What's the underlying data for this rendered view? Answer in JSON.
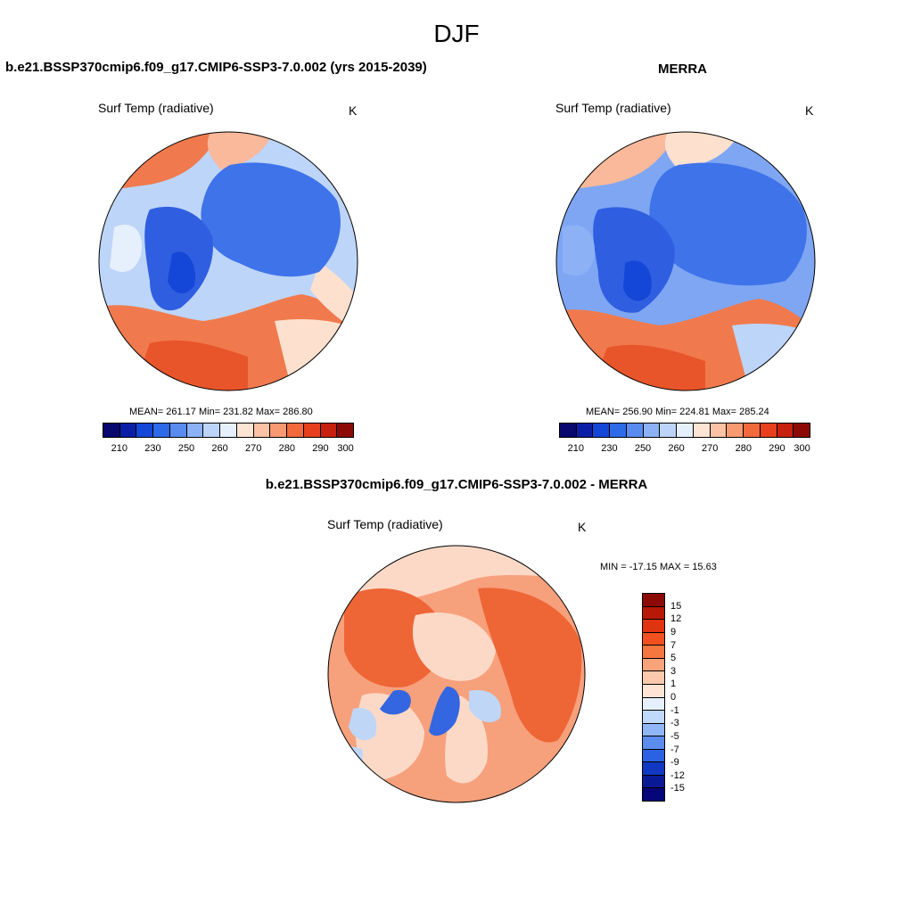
{
  "title": "DJF",
  "panels": {
    "left": {
      "title": "b.e21.BSSP370cmip6.f09_g17.CMIP6-SSP3-7.0.002 (yrs 2015-2039)",
      "variable": "Surf Temp (radiative)",
      "units": "K",
      "stats": "MEAN= 261.17  Min= 231.82  Max= 286.80"
    },
    "right": {
      "title": "MERRA",
      "variable": "Surf Temp (radiative)",
      "units": "K",
      "stats": "MEAN= 256.90  Min= 224.81  Max= 285.24"
    },
    "diff": {
      "title": "b.e21.BSSP370cmip6.f09_g17.CMIP6-SSP3-7.0.002 - MERRA",
      "variable": "Surf Temp (radiative)",
      "units": "K",
      "stats": "MIN = -17.15 MAX =  15.63"
    }
  },
  "colorbar_abs": {
    "ticks": [
      "210",
      "230",
      "250",
      "260",
      "270",
      "280",
      "290",
      "300"
    ],
    "colors": [
      "#08086e",
      "#0b1fa6",
      "#1446d8",
      "#2d6ae8",
      "#5a8cf0",
      "#8cb2f5",
      "#bcd4fa",
      "#e6f0fd",
      "#fde4d4",
      "#fbc2a4",
      "#f79a72",
      "#f26a3c",
      "#e8401c",
      "#c8200e",
      "#8c0a06"
    ]
  },
  "colorbar_diff": {
    "ticks": [
      "15",
      "12",
      "9",
      "7",
      "5",
      "3",
      "1",
      "0",
      "-1",
      "-3",
      "-5",
      "-7",
      "-9",
      "-12",
      "-15"
    ],
    "colors": [
      "#8c0a06",
      "#b81808",
      "#e0330f",
      "#f2501f",
      "#f5763f",
      "#f9a37b",
      "#fdc9ad",
      "#fde4d4",
      "#e6f0fd",
      "#c0d8fa",
      "#90b6f5",
      "#5b8cee",
      "#2b62e4",
      "#1038c2",
      "#0a1a96",
      "#060678"
    ]
  },
  "map_colors": {
    "cold_deep": "#2f5fe0",
    "cold": "#3f73ea",
    "cool": "#7ea6f3",
    "cool_light": "#bdd5f8",
    "neutral": "#fde0ce",
    "warm_light": "#f9b99a",
    "warm": "#f07a4d",
    "hot": "#e8552a",
    "diff_base": "#f7a07c",
    "diff_warm": "#ee6536",
    "diff_pale": "#fcd9c6",
    "diff_blue": "#3366e0",
    "diff_pale_blue": "#bfd6f7"
  }
}
